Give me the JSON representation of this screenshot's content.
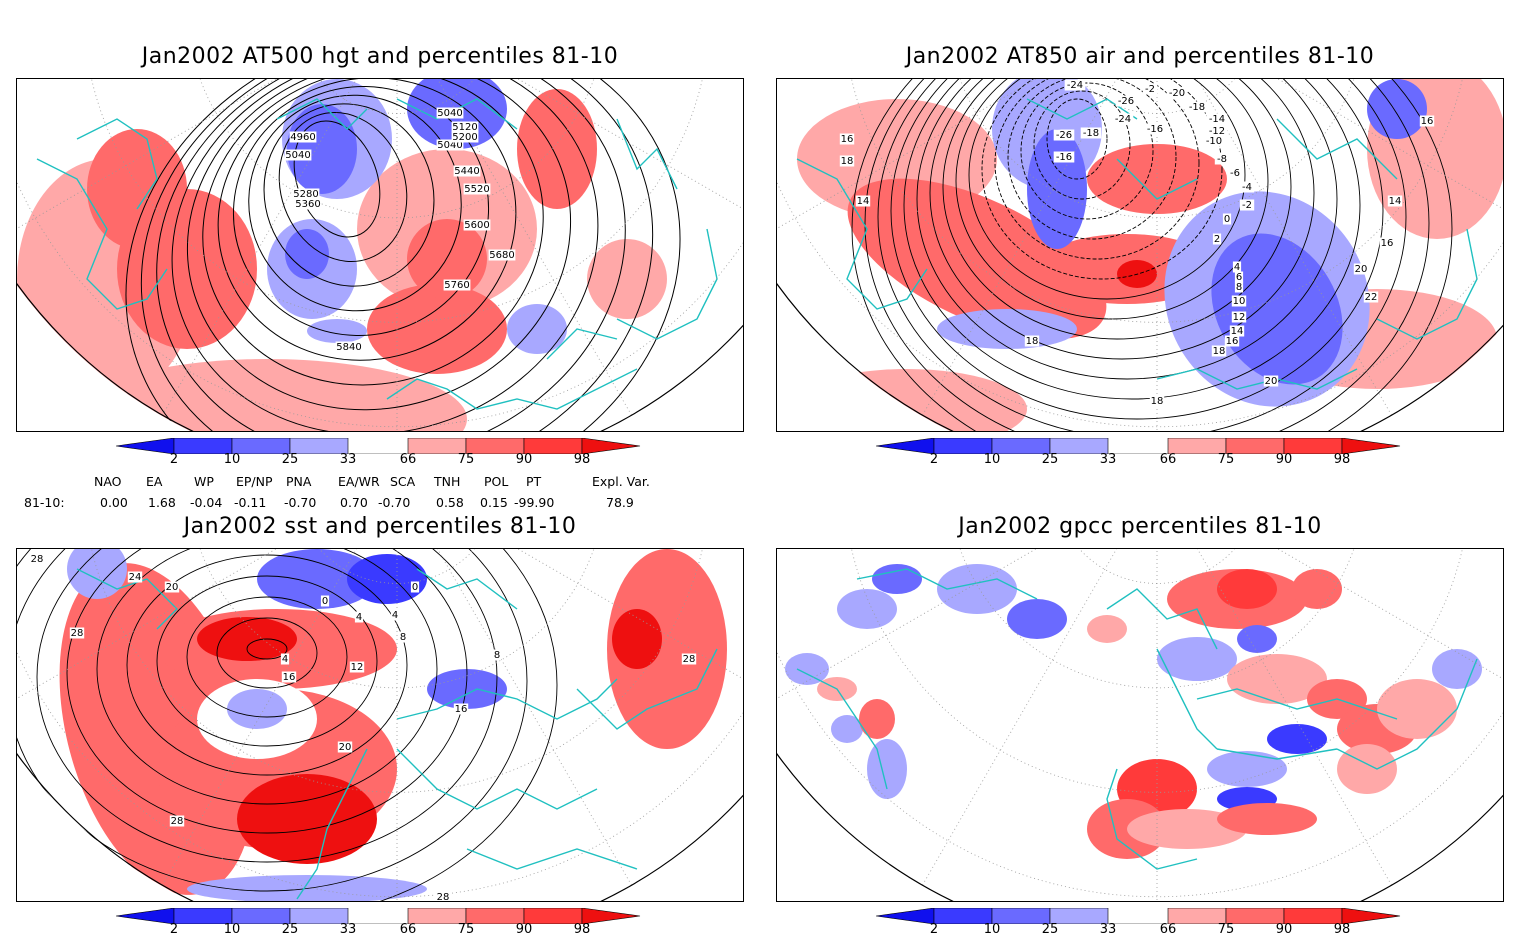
{
  "panels": [
    {
      "id": "p1",
      "title": "Jan2002 AT500 hgt and percentiles 81-10",
      "contour_labels": [
        "5040",
        "5040",
        "5120",
        "4960",
        "5200",
        "5040",
        "5280",
        "5360",
        "5440",
        "5520",
        "5600",
        "5680",
        "5760",
        "5840"
      ]
    },
    {
      "id": "p2",
      "title": "Jan2002 AT850 air and percentiles 81-10",
      "contour_labels": [
        "-24",
        "-26",
        "-2",
        "-20",
        "-18",
        "-24",
        "-16",
        "-14",
        "-12",
        "-26",
        "-18",
        "-16",
        "-10",
        "-8",
        "-6",
        "-4",
        "-2",
        "0",
        "2",
        "4",
        "6",
        "8",
        "10",
        "12",
        "14",
        "16",
        "18",
        "20",
        "22",
        "16",
        "16",
        "18",
        "14",
        "18",
        "14",
        "20",
        "18",
        "16"
      ]
    },
    {
      "id": "p3",
      "title": "Jan2002 sst and percentiles 81-10",
      "contour_labels": [
        "28",
        "24",
        "20",
        "28",
        "0",
        "0",
        "4",
        "4",
        "8",
        "4",
        "12",
        "16",
        "20",
        "16",
        "8",
        "28",
        "28",
        "28"
      ]
    },
    {
      "id": "p4",
      "title": "Jan2002 gpcc percentiles 81-10",
      "contour_labels": []
    }
  ],
  "colorbar": {
    "labels": [
      "2",
      "10",
      "25",
      "33",
      "66",
      "75",
      "90",
      "98"
    ],
    "colors": {
      "blue_extreme": "#1010ee",
      "blue_dark": "#3a3aff",
      "blue_mid": "#6a6aff",
      "blue_light": "#a8a8ff",
      "red_light": "#ffa8a8",
      "red_mid": "#ff6a6a",
      "red_dark": "#ff3a3a",
      "red_extreme": "#ee1010"
    }
  },
  "indices": {
    "row_label": "81-10:",
    "headers": [
      "NAO",
      "EA",
      "WP",
      "EP/NP",
      "PNA",
      "EA/WR",
      "SCA",
      "TNH",
      "POL",
      "PT",
      "Expl. Var."
    ],
    "values": [
      "0.00",
      "1.68",
      "-0.04",
      "-0.11",
      "-0.70",
      "0.70",
      "-0.70",
      "0.58",
      "0.15",
      "-99.90",
      "78.9"
    ]
  },
  "style": {
    "coast_color": "#20c0c0"
  }
}
